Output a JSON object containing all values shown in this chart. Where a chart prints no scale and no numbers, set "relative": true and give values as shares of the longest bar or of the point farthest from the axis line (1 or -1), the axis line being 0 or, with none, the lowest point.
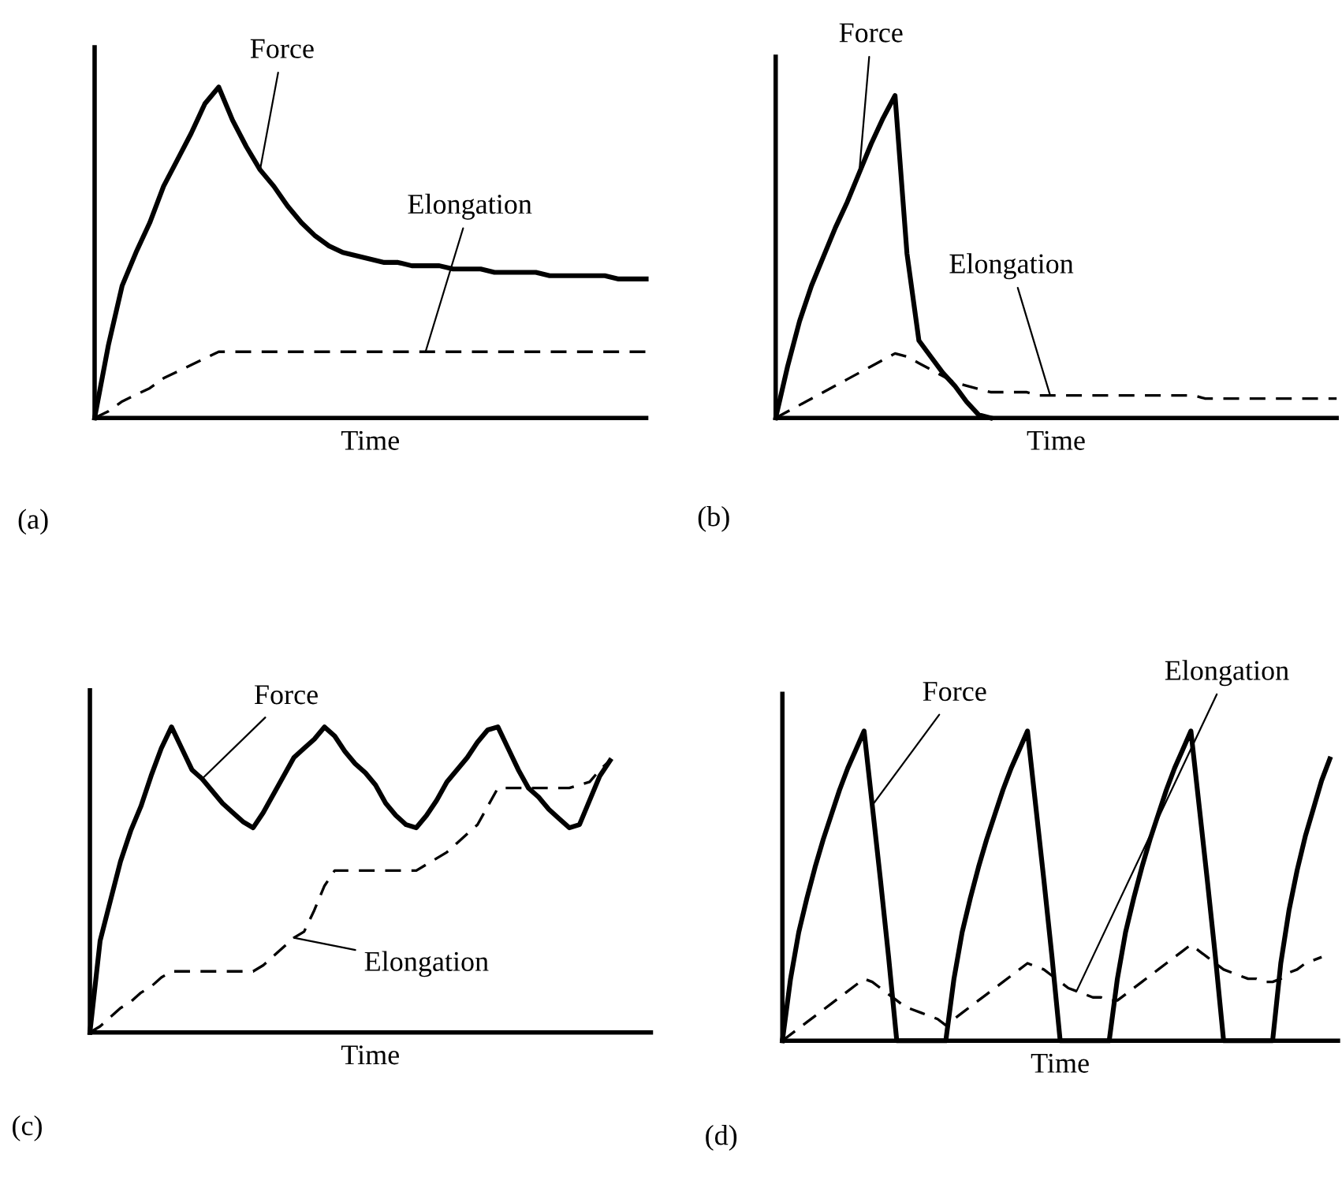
{
  "chart_data": [
    {
      "type": "line",
      "relative": true,
      "xlabel": "Time",
      "annotations": [
        "(a)"
      ],
      "categories": [
        null,
        null,
        null,
        null,
        null,
        null,
        null,
        null,
        null,
        null,
        null,
        null,
        null,
        null,
        null,
        null,
        null,
        null,
        null,
        null,
        null,
        null,
        null,
        null,
        null,
        null,
        null,
        null,
        null,
        null,
        null,
        null,
        null,
        null,
        null,
        null,
        null,
        null,
        null,
        null,
        null
      ],
      "series": [
        {
          "name": "Force",
          "color": "#000000",
          "line_style": "solid",
          "values": [
            0,
            0.22,
            0.4,
            0.5,
            0.59,
            0.7,
            0.78,
            0.86,
            0.95,
            1,
            0.9,
            0.82,
            0.75,
            0.7,
            0.64,
            0.59,
            0.55,
            0.52,
            0.5,
            0.49,
            0.48,
            0.47,
            0.47,
            0.46,
            0.46,
            0.46,
            0.45,
            0.45,
            0.45,
            0.44,
            0.44,
            0.44,
            0.44,
            0.43,
            0.43,
            0.43,
            0.43,
            0.43,
            0.42,
            0.42,
            0.42
          ]
        },
        {
          "name": "Elongation",
          "color": "#000000",
          "line_style": "dashed",
          "values": [
            0,
            0.02,
            0.05,
            0.07,
            0.09,
            0.12,
            0.14,
            0.16,
            0.18,
            0.2,
            0.2,
            0.2,
            0.2,
            0.2,
            0.2,
            0.2,
            0.2,
            0.2,
            0.2,
            0.2,
            0.2,
            0.2,
            0.2,
            0.2,
            0.2,
            0.2,
            0.2,
            0.2,
            0.2,
            0.2,
            0.2,
            0.2,
            0.2,
            0.2,
            0.2,
            0.2,
            0.2,
            0.2,
            0.2,
            0.2,
            0.2
          ]
        }
      ]
    },
    {
      "type": "line",
      "relative": true,
      "xlabel": "Time",
      "annotations": [
        "(b)"
      ],
      "categories": [
        null,
        null,
        null,
        null,
        null,
        null,
        null,
        null,
        null,
        null,
        null,
        null,
        null,
        null,
        null,
        null,
        null,
        null,
        null,
        null,
        null,
        null,
        null,
        null,
        null,
        null,
        null,
        null,
        null,
        null,
        null,
        null,
        null,
        null,
        null,
        null,
        null,
        null,
        null,
        null,
        null,
        null,
        null,
        null,
        null,
        null,
        null,
        null
      ],
      "series": [
        {
          "name": "Force",
          "color": "#000000",
          "line_style": "solid",
          "values": [
            0,
            0.16,
            0.3,
            0.41,
            0.5,
            0.59,
            0.67,
            0.76,
            0.85,
            0.93,
            1,
            0.51,
            0.24,
            0.19,
            0.14,
            0.1,
            0.05,
            0.01,
            0,
            null,
            null,
            null,
            null,
            null,
            null,
            null,
            null,
            null,
            null,
            null,
            null,
            null,
            null,
            null,
            null,
            null,
            null,
            null,
            null,
            null,
            null,
            null,
            null,
            null,
            null,
            null,
            null,
            null
          ]
        },
        {
          "name": "Elongation",
          "color": "#000000",
          "line_style": "dashed",
          "values": [
            0,
            0.02,
            0.04,
            0.06,
            0.08,
            0.1,
            0.12,
            0.14,
            0.16,
            0.18,
            0.2,
            0.19,
            0.17,
            0.15,
            0.13,
            0.11,
            0.1,
            0.09,
            0.08,
            0.08,
            0.08,
            0.08,
            0.07,
            0.07,
            0.07,
            0.07,
            0.07,
            0.07,
            0.07,
            0.07,
            0.07,
            0.07,
            0.07,
            0.07,
            0.07,
            0.07,
            0.06,
            0.06,
            0.06,
            0.06,
            0.06,
            0.06,
            0.06,
            0.06,
            0.06,
            0.06,
            0.06,
            0.06
          ]
        }
      ]
    },
    {
      "type": "line",
      "relative": true,
      "xlabel": "Time",
      "annotations": [
        "(c)"
      ],
      "categories": [
        null,
        null,
        null,
        null,
        null,
        null,
        null,
        null,
        null,
        null,
        null,
        null,
        null,
        null,
        null,
        null,
        null,
        null,
        null,
        null,
        null,
        null,
        null,
        null,
        null,
        null,
        null,
        null,
        null,
        null,
        null,
        null,
        null,
        null,
        null,
        null,
        null,
        null,
        null,
        null,
        null,
        null,
        null,
        null,
        null,
        null,
        null,
        null,
        null,
        null,
        null,
        null,
        null,
        null,
        null,
        null
      ],
      "series": [
        {
          "name": "Force",
          "color": "#000000",
          "line_style": "solid",
          "values": [
            0,
            0.3,
            0.43,
            0.56,
            0.66,
            0.74,
            0.84,
            0.93,
            1,
            0.93,
            0.86,
            0.83,
            0.79,
            0.75,
            0.72,
            0.69,
            0.67,
            0.72,
            0.78,
            0.84,
            0.9,
            0.93,
            0.96,
            1,
            0.97,
            0.92,
            0.88,
            0.85,
            0.81,
            0.75,
            0.71,
            0.68,
            0.67,
            0.71,
            0.76,
            0.82,
            0.86,
            0.9,
            0.95,
            0.99,
            1,
            0.93,
            0.86,
            0.8,
            0.77,
            0.73,
            0.7,
            0.67,
            0.68,
            0.76,
            0.84,
            0.89,
            null,
            null,
            null,
            null
          ]
        },
        {
          "name": "Elongation",
          "color": "#000000",
          "line_style": "dashed",
          "values": [
            0,
            0.02,
            0.05,
            0.08,
            0.1,
            0.13,
            0.15,
            0.18,
            0.2,
            0.2,
            0.2,
            0.2,
            0.2,
            0.2,
            0.2,
            0.2,
            0.2,
            0.22,
            0.25,
            0.28,
            0.31,
            0.33,
            0.4,
            0.48,
            0.53,
            0.53,
            0.53,
            0.53,
            0.53,
            0.53,
            0.53,
            0.53,
            0.53,
            0.55,
            0.57,
            0.59,
            0.62,
            0.65,
            0.68,
            0.74,
            0.8,
            0.8,
            0.8,
            0.8,
            0.8,
            0.8,
            0.8,
            0.8,
            0.81,
            0.82,
            0.86,
            0.89,
            null,
            null,
            null,
            null
          ]
        }
      ]
    },
    {
      "type": "line",
      "relative": true,
      "xlabel": "Time",
      "annotations": [
        "(d)"
      ],
      "categories": [
        null,
        null,
        null,
        null,
        null,
        null,
        null,
        null,
        null,
        null,
        null,
        null,
        null,
        null,
        null,
        null,
        null,
        null,
        null,
        null,
        null,
        null,
        null,
        null,
        null,
        null,
        null,
        null,
        null,
        null,
        null,
        null,
        null,
        null,
        null,
        null,
        null,
        null,
        null,
        null,
        null,
        null,
        null,
        null,
        null,
        null,
        null,
        null,
        null,
        null,
        null,
        null,
        null,
        null,
        null,
        null,
        null,
        null,
        null,
        null,
        null,
        null,
        null,
        null,
        null,
        null,
        null,
        null,
        null
      ],
      "series": [
        {
          "name": "Force",
          "color": "#000000",
          "line_style": "solid",
          "values": [
            0,
            0.2,
            0.35,
            0.46,
            0.56,
            0.65,
            0.73,
            0.81,
            0.88,
            0.94,
            1,
            0.76,
            0.52,
            0.27,
            0,
            0,
            0,
            0,
            0,
            0,
            0,
            0.2,
            0.35,
            0.46,
            0.56,
            0.65,
            0.73,
            0.81,
            0.88,
            0.94,
            1,
            0.76,
            0.52,
            0.27,
            0,
            0,
            0,
            0,
            0,
            0,
            0,
            0.2,
            0.35,
            0.46,
            0.56,
            0.65,
            0.73,
            0.81,
            0.88,
            0.94,
            1,
            0.76,
            0.52,
            0.27,
            0,
            0,
            0,
            0,
            0,
            0,
            0,
            0.25,
            0.42,
            0.55,
            0.66,
            0.75,
            0.84,
            0.91,
            null
          ]
        },
        {
          "name": "Elongation",
          "color": "#000000",
          "line_style": "dashed",
          "values": [
            0,
            0.02,
            0.04,
            0.06,
            0.08,
            0.1,
            0.12,
            0.14,
            0.16,
            0.18,
            0.2,
            0.19,
            0.17,
            0.15,
            0.13,
            0.11,
            0.1,
            0.09,
            0.08,
            0.07,
            0.05,
            0.07,
            0.09,
            0.11,
            0.13,
            0.15,
            0.17,
            0.19,
            0.21,
            0.23,
            0.25,
            0.24,
            0.23,
            0.21,
            0.19,
            0.17,
            0.16,
            0.15,
            0.14,
            0.14,
            0.13,
            0.13,
            0.15,
            0.17,
            0.19,
            0.21,
            0.23,
            0.25,
            0.27,
            0.29,
            0.31,
            0.29,
            0.27,
            0.25,
            0.23,
            0.22,
            0.21,
            0.2,
            0.2,
            0.19,
            0.19,
            0.2,
            0.22,
            0.23,
            0.25,
            0.26,
            0.27,
            null,
            null
          ]
        }
      ]
    }
  ]
}
